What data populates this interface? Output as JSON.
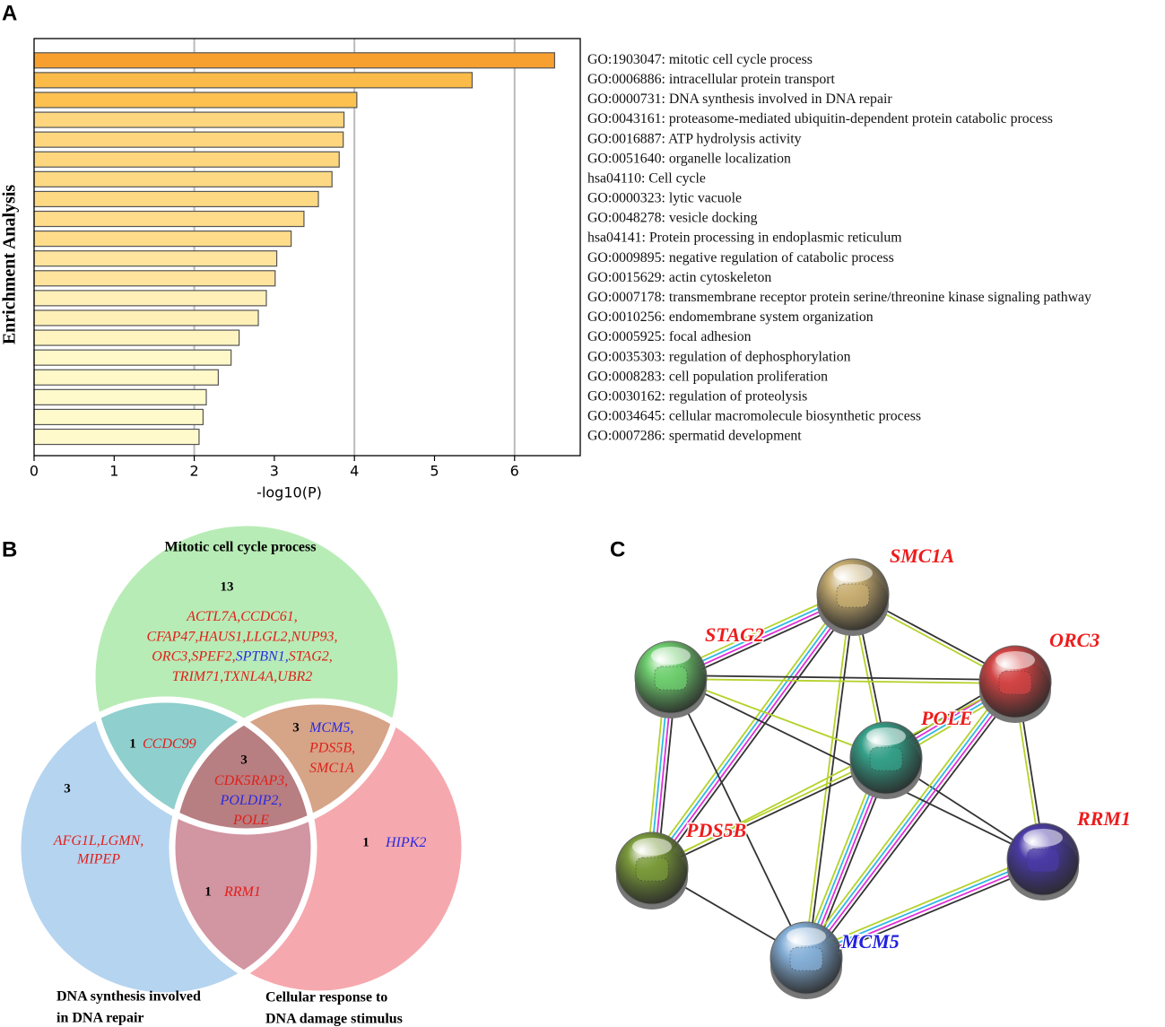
{
  "panel_labels": [
    "A",
    "B",
    "C"
  ],
  "chart_data": {
    "type": "barh",
    "xlabel": "-log10(P)",
    "ylabel": "Enrichment Analysis",
    "categories": [
      "GO:1903047: mitotic cell cycle process",
      "GO:0006886: intracellular protein transport",
      "GO:0000731: DNA synthesis involved in DNA repair",
      "GO:0043161: proteasome-mediated ubiquitin-dependent protein catabolic process",
      "GO:0016887: ATP hydrolysis activity",
      "GO:0051640: organelle localization",
      "hsa04110: Cell cycle",
      "GO:0000323: lytic vacuole",
      "GO:0048278: vesicle docking",
      "hsa04141: Protein processing in endoplasmic reticulum",
      "GO:0009895: negative regulation of catabolic process",
      "GO:0015629: actin cytoskeleton",
      "GO:0007178: transmembrane receptor protein serine/threonine kinase signaling pathway",
      "GO:0010256: endomembrane system organization",
      "GO:0005925: focal adhesion",
      "GO:0035303: regulation of dephosphorylation",
      "GO:0008283: cell population proliferation",
      "GO:0030162: regulation of proteolysis",
      "GO:0034645: cellular macromolecule biosynthetic process",
      "GO:0007286: spermatid development"
    ],
    "values": [
      6.5,
      5.47,
      4.03,
      3.87,
      3.86,
      3.81,
      3.72,
      3.55,
      3.37,
      3.21,
      3.03,
      3.01,
      2.9,
      2.8,
      2.56,
      2.46,
      2.3,
      2.15,
      2.11,
      2.06
    ],
    "colors": [
      "#f7a030",
      "#fbbb48",
      "#fcc14f",
      "#fdd67e",
      "#fdd67e",
      "#fdd67e",
      "#fed984",
      "#fed984",
      "#fedc8a",
      "#fedc8a",
      "#fee49d",
      "#fee49d",
      "#fff0b8",
      "#fff0b8",
      "#fff4c0",
      "#fff8c8",
      "#fff8c8",
      "#fffacc",
      "#fffacc",
      "#fffacc"
    ],
    "xlim": [
      0,
      6.82
    ],
    "xticks": [
      0,
      1,
      2,
      3,
      4,
      5,
      6
    ],
    "grid": true
  },
  "venn": {
    "sets": [
      {
        "title": [
          "Mitotic cell cycle process"
        ]
      },
      {
        "title": [
          "DNA synthesis involved",
          "in DNA repair"
        ]
      },
      {
        "title": [
          "Cellular response to",
          "DNA damage stimulus"
        ]
      }
    ],
    "regions": [
      {
        "count": 13,
        "lines": [
          [
            {
              "text": "ACTL7A,",
              "color": "#e0201b"
            },
            {
              "text": "CCDC61,",
              "color": "#e0201b"
            }
          ],
          [
            {
              "text": "CFAP47,",
              "color": "#e0201b"
            },
            {
              "text": "HAUS1,",
              "color": "#e0201b"
            },
            {
              "text": "LLGL2,",
              "color": "#e0201b"
            },
            {
              "text": "NUP93,",
              "color": "#e0201b"
            }
          ],
          [
            {
              "text": "ORC3,",
              "color": "#e0201b"
            },
            {
              "text": "SPEF2,",
              "color": "#e0201b"
            },
            {
              "text": "SPTBN1,",
              "color": "#2a2ae0"
            },
            {
              "text": "STAG2,",
              "color": "#e0201b"
            }
          ],
          [
            {
              "text": "TRIM71,",
              "color": "#e0201b"
            },
            {
              "text": "TXNL4A,",
              "color": "#e0201b"
            },
            {
              "text": "UBR2",
              "color": "#e0201b"
            }
          ]
        ]
      },
      {
        "count": 1,
        "lines": [
          [
            {
              "text": "CCDC99",
              "color": "#e0201b"
            }
          ]
        ]
      },
      {
        "count": 3,
        "lines": [
          [
            {
              "text": "MCM5,",
              "color": "#2a2ae0"
            }
          ],
          [
            {
              "text": "PDS5B,",
              "color": "#e0201b"
            }
          ],
          [
            {
              "text": "SMC1A",
              "color": "#e0201b"
            }
          ]
        ]
      },
      {
        "count": 3,
        "lines": [
          [
            {
              "text": "CDK5RAP3,",
              "color": "#e0201b"
            }
          ],
          [
            {
              "text": "POLDIP2,",
              "color": "#2a2ae0"
            }
          ],
          [
            {
              "text": "POLE",
              "color": "#e0201b"
            }
          ]
        ]
      },
      {
        "count": 3,
        "lines": [
          [
            {
              "text": "AFG1L,",
              "color": "#e0201b"
            },
            {
              "text": "LGMN,",
              "color": "#e0201b"
            }
          ],
          [
            {
              "text": "MIPEP",
              "color": "#e0201b"
            }
          ]
        ]
      },
      {
        "count": 1,
        "lines": [
          [
            {
              "text": "RRM1",
              "color": "#e0201b"
            }
          ]
        ]
      },
      {
        "count": 1,
        "lines": [
          [
            {
              "text": "HIPK2",
              "color": "#2a2ae0"
            }
          ]
        ]
      }
    ]
  },
  "network": {
    "nodes": [
      {
        "label": "SMC1A",
        "label_color": "#ee1c1c",
        "color": "#c8ae72"
      },
      {
        "label": "STAG2",
        "label_color": "#ee1c1c",
        "color": "#6fcf6f"
      },
      {
        "label": "ORC3",
        "label_color": "#ee1c1c",
        "color": "#d24444"
      },
      {
        "label": "POLE",
        "label_color": "#ee1c1c",
        "color": "#35a088"
      },
      {
        "label": "PDS5B",
        "label_color": "#ee1c1c",
        "color": "#7a9a3a"
      },
      {
        "label": "RRM1",
        "label_color": "#ee1c1c",
        "color": "#4a3aa6"
      },
      {
        "label": "MCM5",
        "label_color": "#2020e0",
        "color": "#86b0d8"
      }
    ]
  }
}
